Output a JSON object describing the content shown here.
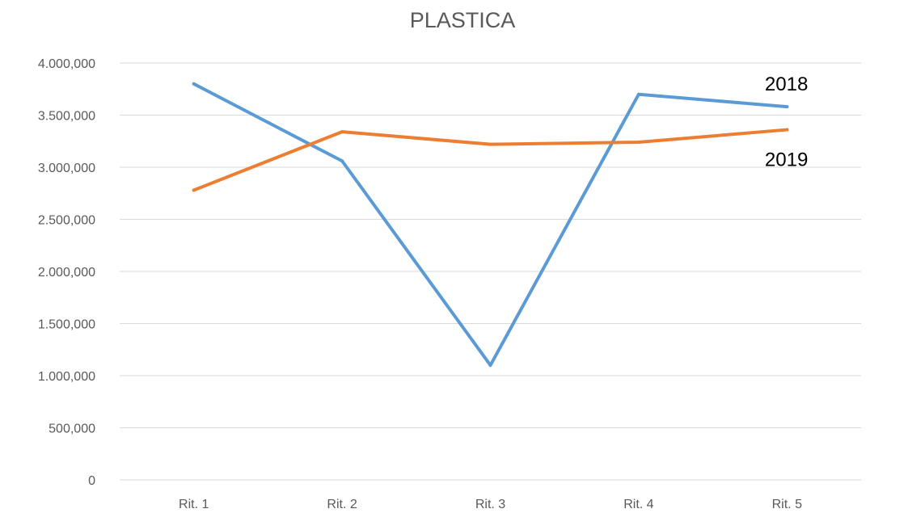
{
  "chart_data": {
    "type": "line",
    "title": "PLASTICA",
    "xlabel": "",
    "ylabel": "",
    "categories": [
      "Rit. 1",
      "Rit. 2",
      "Rit. 3",
      "Rit. 4",
      "Rit. 5"
    ],
    "ylim": [
      0,
      4000000
    ],
    "yticks": [
      0,
      500000,
      1000000,
      1500000,
      2000000,
      2500000,
      3000000,
      3500000,
      4000000
    ],
    "ytick_labels": [
      "0",
      "500,000",
      "1.000,000",
      "1.500,000",
      "2.000,000",
      "2.500,000",
      "3.000,000",
      "3.500,000",
      "4.000,000"
    ],
    "grid": "horizontal",
    "legend": "none",
    "series": [
      {
        "name": "2018",
        "color": "#5b9bd5",
        "values": [
          3800000,
          3060000,
          1100000,
          3700000,
          3580000
        ]
      },
      {
        "name": "2019",
        "color": "#ed7d31",
        "values": [
          2780000,
          3340000,
          3220000,
          3240000,
          3360000
        ]
      }
    ]
  }
}
